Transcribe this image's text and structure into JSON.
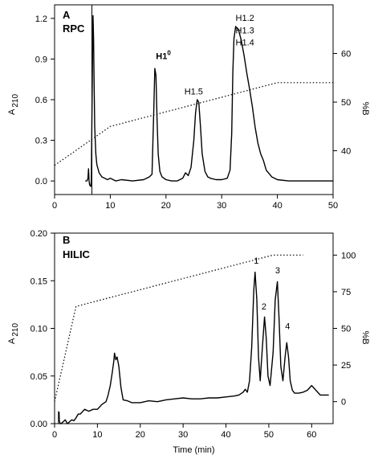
{
  "chart_data": [
    {
      "type": "line",
      "panel_label": "A",
      "method_label": "RPC",
      "xlabel": "",
      "ylabel_main": "A",
      "ylabel_sub": "210",
      "y2label": "%B",
      "xlim": [
        0,
        50
      ],
      "ylim": [
        -0.1,
        1.3
      ],
      "y2lim": [
        31,
        70
      ],
      "xticks": [
        "0",
        "10",
        "20",
        "30",
        "40",
        "50"
      ],
      "yticks": [
        "0.0",
        "0.3",
        "0.6",
        "0.9",
        "1.2"
      ],
      "y2ticks": [
        "40",
        "50",
        "60"
      ],
      "annotations": [
        {
          "text": "H1",
          "sup": "0",
          "x": 18.2,
          "y": 0.9,
          "bold": true
        },
        {
          "text": "H1.5",
          "x": 23.3,
          "y": 0.64,
          "bold": false
        },
        {
          "text": "H1.2",
          "x": 32.5,
          "y": 1.18,
          "bold": false
        },
        {
          "text": "H1.3",
          "x": 32.5,
          "y": 1.09,
          "bold": false
        },
        {
          "text": "H1.4",
          "x": 32.5,
          "y": 1.0,
          "bold": false
        }
      ],
      "series": [
        {
          "style": "solid",
          "axis": "left",
          "x": [
            5.5,
            5.8,
            6.0,
            6.1,
            6.2,
            6.3,
            6.5,
            6.6,
            6.8,
            6.9,
            7.0,
            7.1,
            7.2,
            7.4,
            7.6,
            8.0,
            8.5,
            9.0,
            9.5,
            10,
            11,
            12,
            14,
            16,
            17,
            17.5,
            17.8,
            18.0,
            18.2,
            18.4,
            18.6,
            18.9,
            19.3,
            20,
            21,
            22,
            23,
            23.5,
            24,
            24.5,
            25,
            25.3,
            25.6,
            25.9,
            26.2,
            26.5,
            27,
            27.5,
            28,
            29,
            30,
            31,
            31.5,
            31.8,
            32.0,
            32.2,
            32.5,
            33.0,
            33.5,
            34,
            34.5,
            35,
            35.5,
            36,
            36.5,
            37,
            37.5,
            38,
            39,
            40,
            42,
            45,
            48,
            50
          ],
          "y": [
            0.0,
            0.0,
            0.02,
            0.09,
            0.0,
            -0.03,
            -0.04,
            0.0,
            0.9,
            1.22,
            1.05,
            0.7,
            0.4,
            0.2,
            0.12,
            0.06,
            0.03,
            0.02,
            0.01,
            0.02,
            0.0,
            0.01,
            0.0,
            0.01,
            0.03,
            0.05,
            0.5,
            0.83,
            0.78,
            0.45,
            0.2,
            0.07,
            0.03,
            0.01,
            0.0,
            0.0,
            0.02,
            0.06,
            0.04,
            0.1,
            0.3,
            0.5,
            0.6,
            0.58,
            0.4,
            0.2,
            0.07,
            0.03,
            0.02,
            0.01,
            0.01,
            0.02,
            0.08,
            0.35,
            0.8,
            1.05,
            1.14,
            1.12,
            1.04,
            0.93,
            0.8,
            0.68,
            0.55,
            0.4,
            0.28,
            0.2,
            0.15,
            0.08,
            0.03,
            0.01,
            0.0,
            0.0,
            0.0,
            0.0
          ]
        },
        {
          "style": "dotted",
          "axis": "right",
          "x": [
            0,
            10,
            40,
            50
          ],
          "y": [
            37,
            45,
            54,
            54
          ]
        }
      ]
    },
    {
      "type": "line",
      "panel_label": "B",
      "method_label": "HILIC",
      "xlabel": "Time (min)",
      "ylabel_main": "A",
      "ylabel_sub": "210",
      "y2label": "%B",
      "xlim": [
        0,
        65
      ],
      "ylim": [
        0,
        0.2
      ],
      "y2lim": [
        -15,
        115
      ],
      "xticks": [
        "0",
        "10",
        "20",
        "30",
        "40",
        "50",
        "60"
      ],
      "yticks": [
        "0.00",
        "0.05",
        "0.10",
        "0.15",
        "0.20"
      ],
      "y2ticks": [
        "0",
        "25",
        "50",
        "75",
        "100"
      ],
      "annotations": [
        {
          "text": "1",
          "x": 46.5,
          "y": 0.168
        },
        {
          "text": "3",
          "x": 51.5,
          "y": 0.158
        },
        {
          "text": "2",
          "x": 48.3,
          "y": 0.12
        },
        {
          "text": "4",
          "x": 53.8,
          "y": 0.099
        }
      ],
      "series": [
        {
          "style": "solid",
          "axis": "left",
          "x": [
            1.0,
            1.05,
            1.1,
            1.3,
            1.5,
            2,
            2.5,
            3,
            3.5,
            4,
            4.5,
            5,
            5.5,
            6,
            7,
            8,
            9,
            10,
            11,
            12,
            12.5,
            13,
            13.5,
            13.8,
            14,
            14.3,
            14.6,
            15,
            15.5,
            16,
            17,
            18,
            20,
            22,
            24,
            26,
            28,
            30,
            32,
            34,
            36,
            38,
            40,
            42,
            43,
            44,
            44.5,
            45,
            45.5,
            46,
            46.5,
            46.8,
            47.2,
            47.6,
            48,
            48.5,
            49,
            49.4,
            49.8,
            50.3,
            51,
            51.5,
            52,
            52.4,
            52.8,
            53.3,
            53.8,
            54.2,
            54.6,
            55,
            55.5,
            56,
            57,
            58,
            59,
            60,
            61,
            62,
            64
          ],
          "y": [
            0.005,
            0.012,
            0.003,
            0.0,
            0.0,
            0.002,
            0.004,
            0.0,
            0.002,
            0.004,
            0.003,
            0.006,
            0.01,
            0.01,
            0.015,
            0.013,
            0.015,
            0.015,
            0.02,
            0.023,
            0.03,
            0.04,
            0.055,
            0.065,
            0.074,
            0.067,
            0.07,
            0.06,
            0.038,
            0.025,
            0.024,
            0.022,
            0.022,
            0.024,
            0.023,
            0.025,
            0.026,
            0.027,
            0.026,
            0.026,
            0.027,
            0.027,
            0.028,
            0.029,
            0.03,
            0.033,
            0.036,
            0.033,
            0.045,
            0.08,
            0.14,
            0.159,
            0.13,
            0.07,
            0.045,
            0.08,
            0.112,
            0.09,
            0.05,
            0.04,
            0.075,
            0.13,
            0.149,
            0.11,
            0.06,
            0.045,
            0.07,
            0.085,
            0.07,
            0.045,
            0.035,
            0.032,
            0.032,
            0.033,
            0.035,
            0.04,
            0.035,
            0.03,
            0.03
          ]
        },
        {
          "style": "dotted",
          "axis": "right",
          "x": [
            0,
            5,
            51,
            58
          ],
          "y": [
            0,
            65,
            100,
            100
          ]
        }
      ]
    }
  ]
}
